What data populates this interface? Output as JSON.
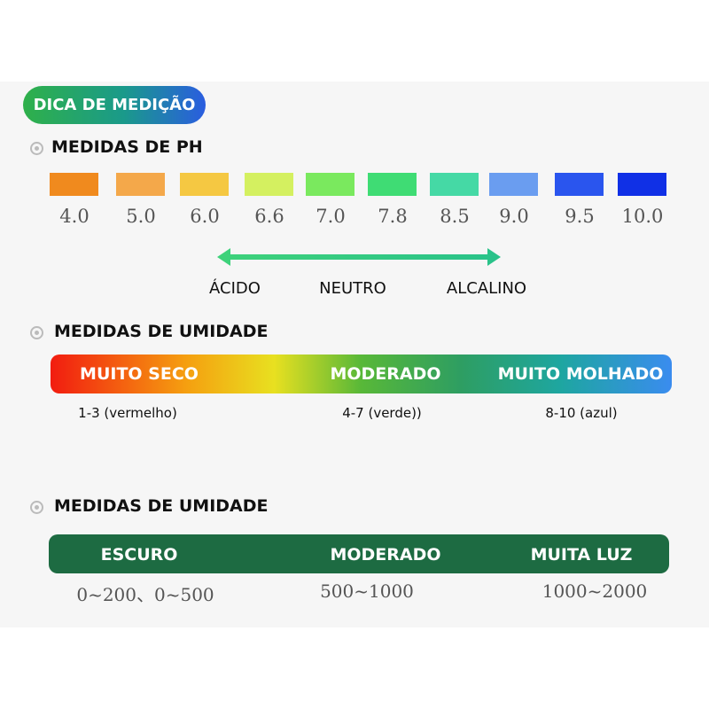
{
  "badge": "DICA DE MEDIÇÃO",
  "ph": {
    "title": "MEDIDAS DE PH",
    "scale": [
      {
        "label": "4.0",
        "color": "#f08a1e"
      },
      {
        "label": "5.0",
        "color": "#f4a84a"
      },
      {
        "label": "6.0",
        "color": "#f5c842"
      },
      {
        "label": "6.6",
        "color": "#d4f060"
      },
      {
        "label": "7.0",
        "color": "#7ae95e"
      },
      {
        "label": "7.8",
        "color": "#3fdc74"
      },
      {
        "label": "8.5",
        "color": "#45d9a5"
      },
      {
        "label": "9.0",
        "color": "#6a9df0"
      },
      {
        "label": "9.5",
        "color": "#2a55ee"
      },
      {
        "label": "10.0",
        "color": "#1030e6"
      }
    ],
    "arrow_labels": [
      "ÁCIDO",
      "NEUTRO",
      "ALCALINO"
    ]
  },
  "humidity": {
    "title": "MEDIDAS DE UMIDADE",
    "bar_labels": [
      "MUITO SECO",
      "MODERADO",
      "MUITO MOLHADO"
    ],
    "ranges": [
      "1-3 (vermelho)",
      "4-7 (verde))",
      "8-10 (azul)"
    ]
  },
  "light": {
    "title": "MEDIDAS DE UMIDADE",
    "bar_labels": [
      "ESCURO",
      "MODERADO",
      "MUITA LUZ"
    ],
    "ranges": [
      "0~200、0~500",
      "500~1000",
      "1000~2000"
    ]
  }
}
